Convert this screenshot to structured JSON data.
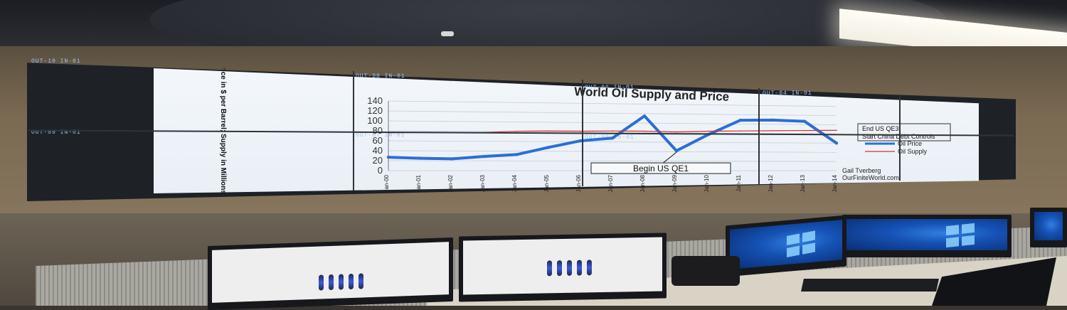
{
  "videowall": {
    "tile_labels": [
      "OUT-10 IN-01",
      "OUT-09 IN-01",
      "OUT-08 IN-01",
      "OUT-07 IN-01",
      "OUT-06 IN-01",
      "OUT-05 IN-01",
      "OUT-04 IN-01"
    ]
  },
  "chart_data": {
    "type": "line",
    "title": "World Oil Supply and Price",
    "ylabel": "Brent Oil Price in $ per Barrel; Supply in Millions Barrels per Day",
    "yticks": [
      0,
      20,
      40,
      60,
      80,
      100,
      120,
      140
    ],
    "ylim": [
      0,
      140
    ],
    "x": [
      "Jan-00",
      "Jan-01",
      "Jan-02",
      "Jan-03",
      "Jan-04",
      "Jan-05",
      "Jan-06",
      "Jan-07",
      "Jan-08",
      "Jan-09",
      "Jan-10",
      "Jan-11",
      "Jan-12",
      "Jan-13",
      "Jan-14"
    ],
    "series": [
      {
        "name": "Oil Price",
        "color": "#2a6fd6",
        "values": [
          27,
          25,
          24,
          29,
          33,
          48,
          62,
          68,
          115,
          42,
          77,
          108,
          109,
          107,
          60
        ]
      },
      {
        "name": "Oil Supply",
        "color": "#cc3333",
        "values": [
          76,
          77,
          77,
          78,
          81,
          82,
          82,
          83,
          83,
          82,
          84,
          85,
          86,
          87,
          88
        ]
      }
    ],
    "annotations": [
      {
        "text": "Begin US QE1",
        "at": "Jan-09"
      },
      {
        "text": "End US QE3; Start China Debt Controls",
        "at": "Jan-14"
      }
    ],
    "legend": [
      "Oil Price",
      "Oil Supply"
    ],
    "legend_position": "right",
    "credit": [
      "Gail Tverberg",
      "OurFiniteWorld.com"
    ]
  }
}
